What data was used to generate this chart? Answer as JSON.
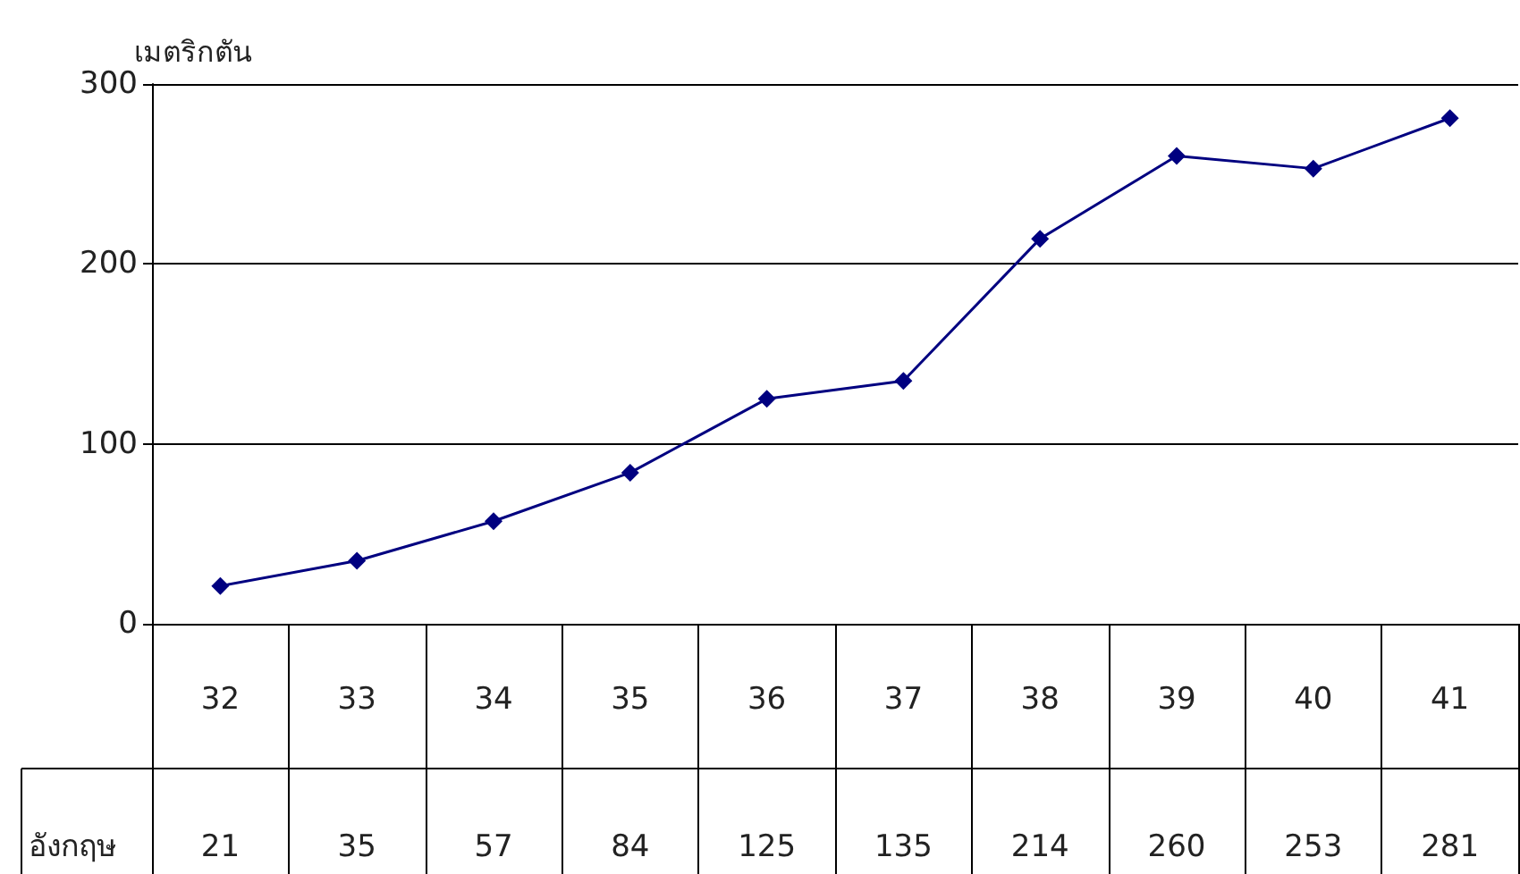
{
  "chart_data": {
    "type": "line",
    "ylabel": "เมตริกตัน",
    "categories": [
      "32",
      "33",
      "34",
      "35",
      "36",
      "37",
      "38",
      "39",
      "40",
      "41"
    ],
    "series": [
      {
        "name": "อังกฤษ",
        "color": "#000080",
        "values": [
          21,
          35,
          57,
          84,
          125,
          135,
          214,
          260,
          253,
          281
        ]
      }
    ],
    "ylim": [
      0,
      300
    ],
    "yticks": [
      0,
      100,
      200,
      300
    ],
    "grid": "y",
    "marker": "diamond",
    "line_style": "solid",
    "data_labels": true
  }
}
